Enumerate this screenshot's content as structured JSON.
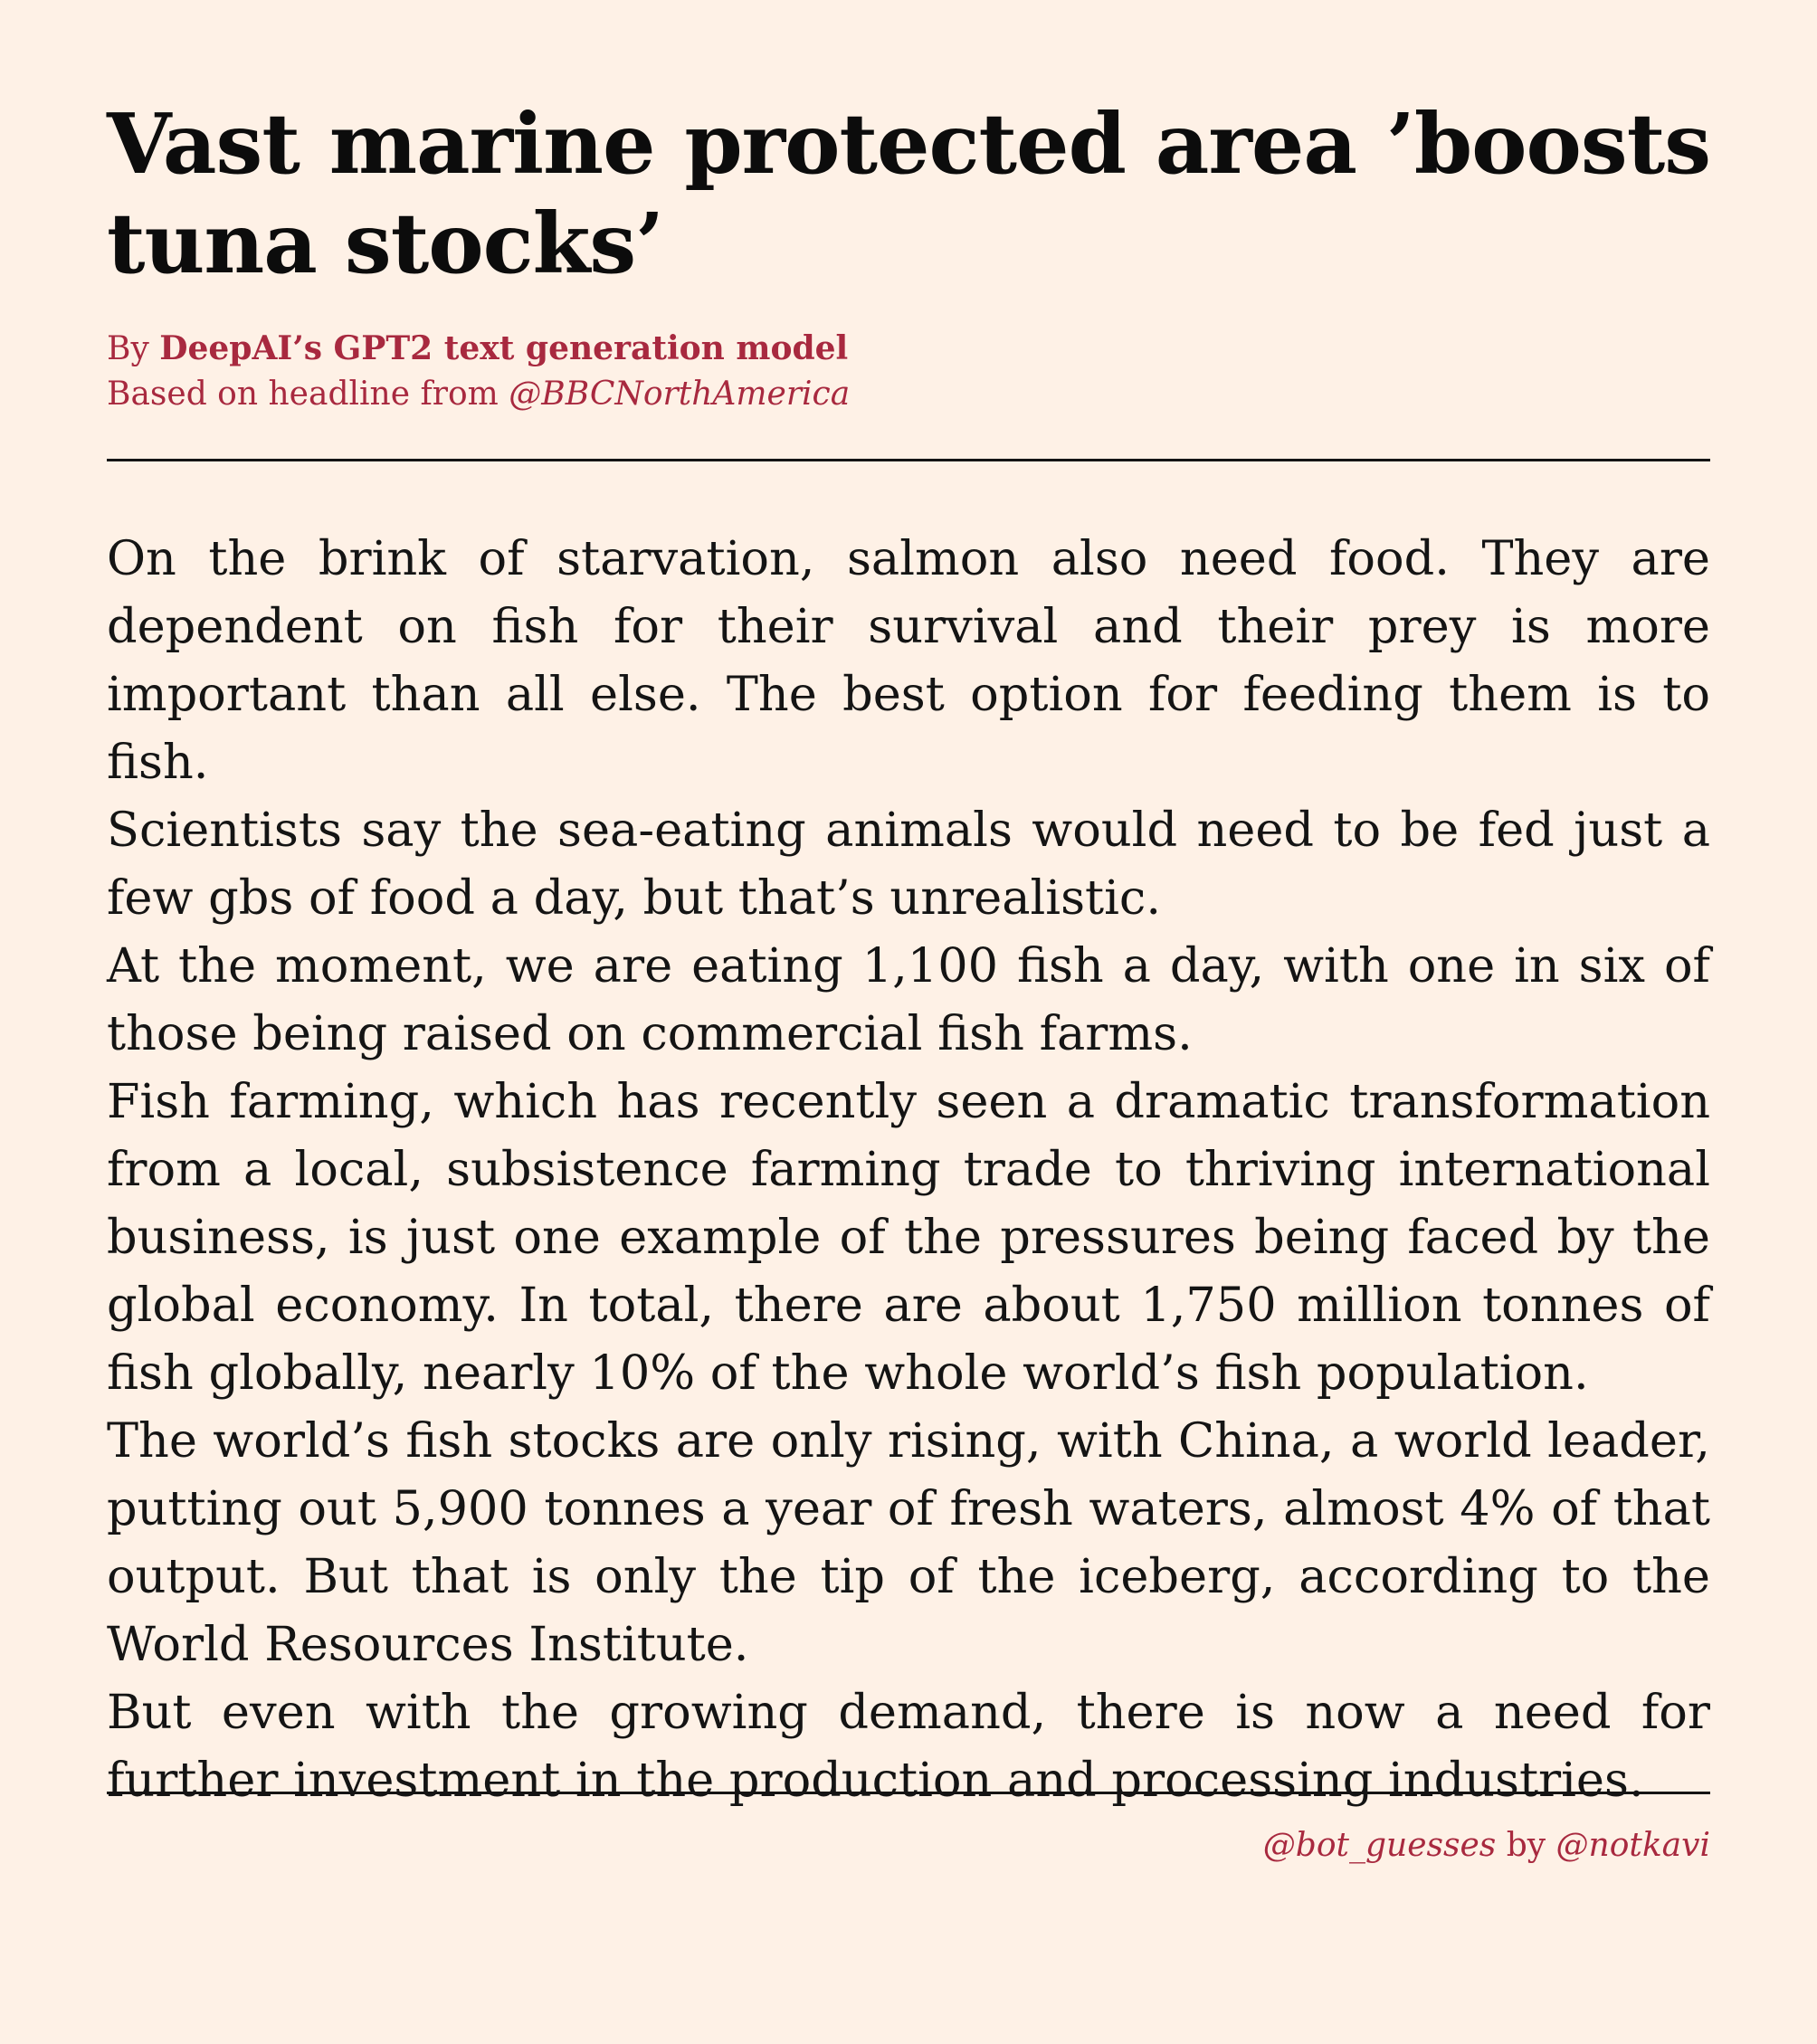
{
  "headline": "Vast marine protected area ’boosts tuna stocks’",
  "byline": {
    "by_prefix": "By ",
    "author": "DeepAI’s GPT2 text generation model",
    "source_prefix": "Based on headline from ",
    "source_handle": "@BBCNorthAmerica"
  },
  "article": {
    "paragraphs": [
      "On the brink of starvation, salmon also need food. They are dependent on fish for their survival and their prey is more important than all else. The best option for feeding them is to fish.",
      "Scientists say the sea-eating animals would need to be fed just a few gbs of food a day, but that’s unrealistic.",
      "At the moment, we are eating 1,100 fish a day, with one in six of those being raised on commercial fish farms.",
      "Fish farming, which has recently seen a dramatic transformation from a local, subsistence farming trade to thriving international business, is just one example of the pressures being faced by the global economy. In total, there are about 1,750 million tonnes of fish globally, nearly 10% of the whole world’s fish population.",
      "The world’s fish stocks are only rising, with China, a world leader, putting out 5,900 tonnes a year of fresh waters, almost 4% of that output. But that is only the tip of the iceberg, according to the World Resources Institute.",
      "But even with the growing demand, there is now a need for further investment in the production and processing industries."
    ]
  },
  "credit": {
    "bot_handle": "@bot_guesses",
    "joiner": " by ",
    "author_handle": "@notkavi"
  },
  "colors": {
    "background": "#fef1e6",
    "accent": "#a8293f",
    "text": "#141414"
  }
}
